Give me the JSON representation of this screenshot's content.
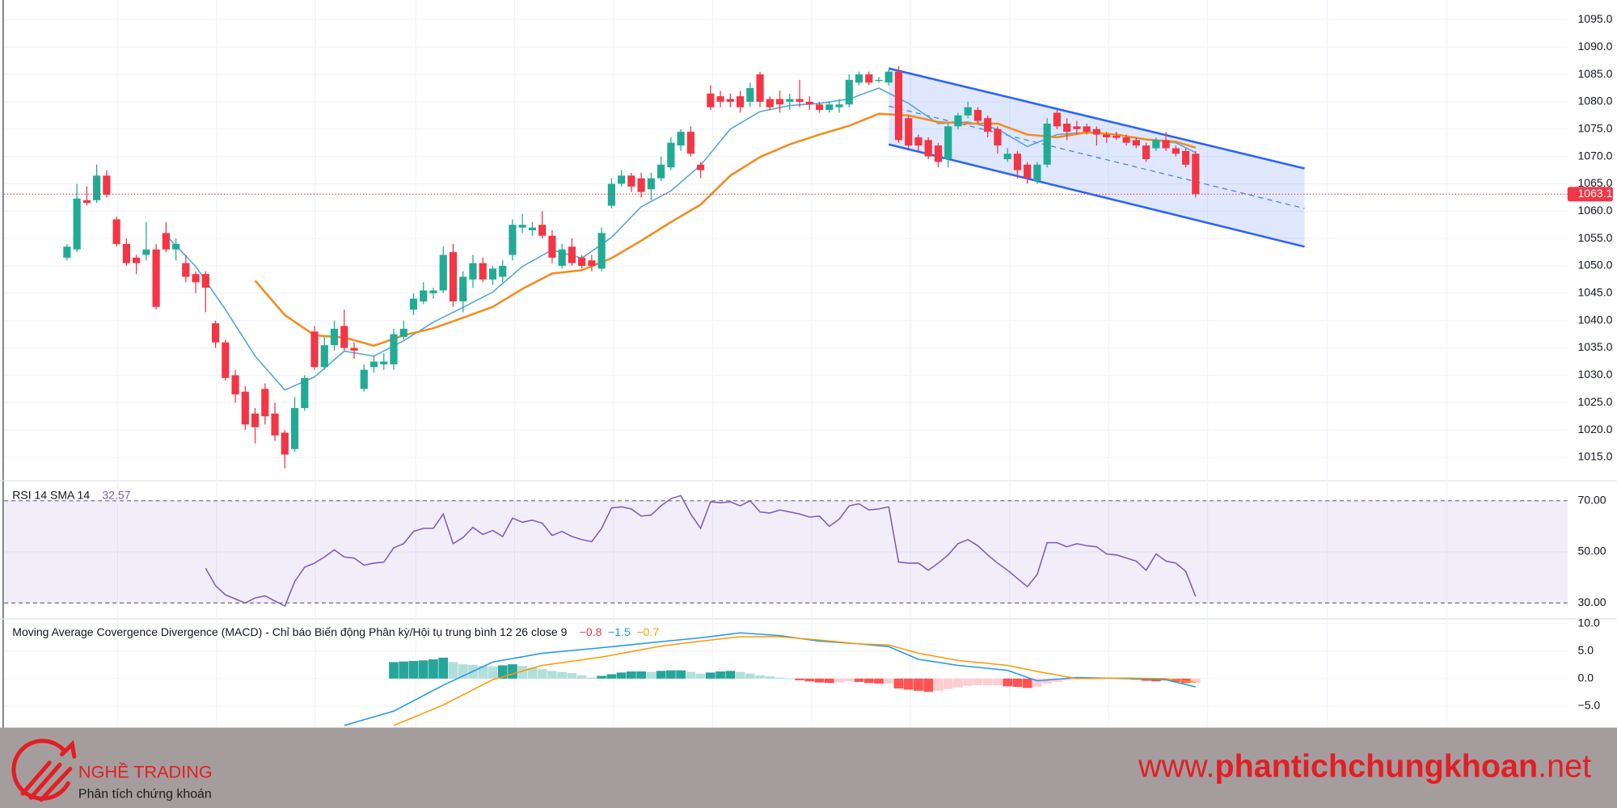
{
  "chart_data": [
    {
      "type": "candlestick",
      "up_color": "#22ab94",
      "down_color": "#f23645",
      "open": [
        1051.5,
        1053,
        1062,
        1062,
        1066.5,
        1058.5,
        1054,
        1051.5,
        1052,
        1053,
        1056,
        1053,
        1050.5,
        1048.5,
        1048.5,
        1039.5,
        1036,
        1030,
        1027,
        1023,
        1027.5,
        1023,
        1019.5,
        1016.5,
        1024,
        1038,
        1031.5,
        1035.5,
        1039,
        1035,
        1027.5,
        1031.5,
        1032,
        1032,
        1037,
        1042,
        1043.5,
        1045,
        1045.5,
        1052.5,
        1043.5,
        1047.5,
        1050.5,
        1047.5,
        1048,
        1052,
        1057,
        1056.5,
        1057.5,
        1055.5,
        1050,
        1053.5,
        1051.5,
        1051,
        1049.5,
        1061,
        1065,
        1066.5,
        1066,
        1064,
        1066,
        1068,
        1072,
        1074.5,
        1068.5,
        1081.5,
        1081,
        1080.5,
        1081,
        1080,
        1085,
        1080.5,
        1080.5,
        1080,
        1080.5,
        1080,
        1079.5,
        1078.5,
        1079,
        1079.5,
        1083.5,
        1085,
        1083.8,
        1083.5,
        1085.5,
        1077,
        1073.5,
        1073,
        1072,
        1069.5,
        1075.5,
        1077.5,
        1078.5,
        1077,
        1075,
        1069.5,
        1070.5,
        1068.5,
        1065.5,
        1068.5,
        1078,
        1076,
        1075.5,
        1075.5,
        1075,
        1074,
        1073.8,
        1073.5,
        1073,
        1072,
        1071.5,
        1073,
        1071.5,
        1071,
        1070.5
      ],
      "high": [
        1054,
        1065,
        1064.5,
        1068.5,
        1067.5,
        1059,
        1055,
        1052,
        1058,
        1054,
        1058,
        1055,
        1052,
        1049,
        1049,
        1040,
        1036.5,
        1031,
        1028,
        1024,
        1028.5,
        1025,
        1020,
        1026,
        1030,
        1039,
        1037,
        1040,
        1042,
        1036,
        1032,
        1033.5,
        1034,
        1038.5,
        1040,
        1045,
        1047,
        1046,
        1053.5,
        1054,
        1049,
        1052,
        1051.5,
        1050,
        1051,
        1058.5,
        1059.5,
        1058,
        1060,
        1056.5,
        1054,
        1055,
        1052,
        1052,
        1057,
        1066,
        1067.5,
        1067,
        1067,
        1067,
        1070,
        1073.5,
        1075,
        1075.5,
        1069,
        1083,
        1082,
        1081.5,
        1082,
        1083.5,
        1085.5,
        1081,
        1082,
        1081.5,
        1084,
        1081,
        1080,
        1080,
        1080.5,
        1085,
        1085.5,
        1085.5,
        1084.5,
        1086,
        1086.5,
        1077.5,
        1074,
        1073.5,
        1072.5,
        1076,
        1078,
        1080,
        1079,
        1077.5,
        1075.5,
        1071.5,
        1071,
        1069,
        1069,
        1077,
        1078.5,
        1077,
        1076.5,
        1076,
        1075.5,
        1074.5,
        1074.5,
        1074,
        1073.5,
        1072.5,
        1073.5,
        1074.5,
        1072,
        1071.5,
        1071
      ],
      "low": [
        1051,
        1052.5,
        1061,
        1061.5,
        1062.5,
        1053.5,
        1050,
        1048.5,
        1051,
        1042,
        1052.5,
        1051,
        1047,
        1045,
        1041.5,
        1035,
        1029,
        1025,
        1020,
        1017.5,
        1021,
        1018,
        1013,
        1016,
        1023.5,
        1031,
        1031,
        1034.5,
        1034.5,
        1033,
        1027,
        1030.5,
        1031,
        1031,
        1036.5,
        1041,
        1043,
        1044,
        1045,
        1042.5,
        1041.5,
        1046,
        1047,
        1046.5,
        1047,
        1051,
        1056,
        1055.5,
        1055,
        1050.5,
        1049.5,
        1050,
        1049.5,
        1049,
        1049,
        1060.5,
        1064.5,
        1063.5,
        1062.5,
        1062,
        1065.5,
        1067.5,
        1071,
        1070,
        1066,
        1078.5,
        1079,
        1079,
        1078,
        1079,
        1079,
        1078.5,
        1078,
        1078.5,
        1079,
        1078.5,
        1078,
        1078,
        1078,
        1079,
        1083,
        1083,
        1083.5,
        1083,
        1072.5,
        1071.5,
        1071,
        1069.5,
        1068,
        1068,
        1075,
        1077,
        1076,
        1073.5,
        1070.5,
        1069,
        1066,
        1065,
        1065,
        1068,
        1075,
        1073,
        1074,
        1074,
        1072,
        1072.5,
        1073,
        1072,
        1071.5,
        1069,
        1071,
        1071,
        1070,
        1068,
        1062.5
      ],
      "close": [
        1053.5,
        1062.3,
        1061.5,
        1066.5,
        1063,
        1054,
        1050.5,
        1050.5,
        1053,
        1042.5,
        1053,
        1054,
        1048,
        1047,
        1046,
        1036,
        1029.5,
        1026.5,
        1021,
        1020.5,
        1022.5,
        1019,
        1015.5,
        1024,
        1029.5,
        1031.5,
        1035.5,
        1038.5,
        1035,
        1034.5,
        1031,
        1032.5,
        1032.5,
        1037.5,
        1038.5,
        1044,
        1045.5,
        1045.5,
        1052,
        1043.5,
        1048,
        1050.5,
        1047.5,
        1049.5,
        1050,
        1057.5,
        1057.5,
        1057,
        1055.5,
        1051.5,
        1053,
        1050.5,
        1050,
        1050,
        1056,
        1065,
        1066.5,
        1064.5,
        1063.5,
        1066,
        1068.5,
        1072.5,
        1074.5,
        1070.5,
        1067.5,
        1079,
        1080,
        1080,
        1079,
        1082.5,
        1080,
        1079,
        1079.5,
        1080.5,
        1080,
        1079.5,
        1078.5,
        1079.5,
        1079.5,
        1084,
        1085,
        1083.5,
        1084,
        1085.5,
        1073,
        1072,
        1072,
        1070,
        1069,
        1075.5,
        1077.5,
        1079,
        1076.5,
        1074.5,
        1072,
        1070.5,
        1067.5,
        1066,
        1068.5,
        1076,
        1075.5,
        1074.5,
        1075,
        1074.5,
        1074,
        1073.5,
        1073.4,
        1072.5,
        1072,
        1069.5,
        1073,
        1071.5,
        1070.5,
        1068.5,
        1063.1
      ],
      "moving_averages": [
        {
          "color": "#4fa3e0",
          "x": [
            10,
            13,
            16,
            19,
            22,
            25,
            28,
            31,
            34,
            37,
            40,
            43,
            46,
            49,
            52,
            55,
            58,
            61,
            64,
            67,
            70,
            73,
            76,
            79,
            82,
            85,
            88,
            91,
            94,
            97,
            100,
            103,
            106,
            109,
            112,
            114
          ],
          "values": [
            1055.6,
            1049.9,
            1042,
            1033.5,
            1027.3,
            1029.7,
            1034.4,
            1033.5,
            1036.3,
            1039.7,
            1042.4,
            1045.2,
            1049.9,
            1052.9,
            1051.4,
            1055.2,
            1060.8,
            1063.7,
            1068.4,
            1075,
            1078.2,
            1079.3,
            1079.7,
            1080.5,
            1082.5,
            1079.7,
            1076,
            1076.3,
            1075,
            1071.8,
            1074,
            1074.4,
            1074,
            1073.1,
            1072.5,
            1070.7
          ]
        },
        {
          "color": "#f28c1e",
          "x": [
            19,
            22,
            25,
            28,
            31,
            34,
            37,
            40,
            43,
            46,
            49,
            52,
            55,
            58,
            61,
            64,
            67,
            70,
            73,
            76,
            79,
            82,
            85,
            88,
            91,
            94,
            97,
            100,
            103,
            106,
            109,
            112,
            114
          ],
          "values": [
            1047.3,
            1041,
            1037.3,
            1036.9,
            1035.4,
            1037.3,
            1038.6,
            1040.5,
            1042.5,
            1045.8,
            1048.6,
            1049.2,
            1051.4,
            1054.6,
            1058,
            1061.2,
            1066.5,
            1069.9,
            1072.2,
            1074,
            1075.6,
            1077.8,
            1077.5,
            1076.3,
            1076,
            1076,
            1074,
            1073.5,
            1074.4,
            1074,
            1073.1,
            1072.7,
            1071.6
          ]
        }
      ],
      "channel": {
        "color": "#2962ff",
        "x": [
          83,
          125
        ],
        "upper": [
          1086.1,
          1067.8
        ],
        "middle": [
          1079.2,
          1060.5
        ],
        "lower": [
          1072.2,
          1053.5
        ]
      },
      "last_price": 1063.1,
      "last_price_color": "#f23645",
      "ylim": [
        1010.8,
        1098.6
      ],
      "yticks": [
        {
          "value": 1015,
          "label": "1015.0"
        },
        {
          "value": 1020,
          "label": "1020.0"
        },
        {
          "value": 1025,
          "label": "1025.0"
        },
        {
          "value": 1030,
          "label": "1030.0"
        },
        {
          "value": 1035,
          "label": "1035.0"
        },
        {
          "value": 1040,
          "label": "1040.0"
        },
        {
          "value": 1045,
          "label": "1045.0"
        },
        {
          "value": 1050,
          "label": "1050.0"
        },
        {
          "value": 1055,
          "label": "1055.0"
        },
        {
          "value": 1060,
          "label": "1060.0"
        },
        {
          "value": 1065,
          "label": "1065.0"
        },
        {
          "value": 1070,
          "label": "1070.0"
        },
        {
          "value": 1075,
          "label": "1075.0"
        },
        {
          "value": 1080,
          "label": "1080.0"
        },
        {
          "value": 1085,
          "label": "1085.0"
        },
        {
          "value": 1090,
          "label": "1090.0"
        },
        {
          "value": 1095,
          "label": "1095.0"
        }
      ],
      "grid": true
    },
    {
      "type": "line",
      "title": "RSI 14 SMA 14",
      "color": "#7e57c2",
      "band_color": "#7e57c2",
      "values": [
        null,
        null,
        null,
        null,
        null,
        null,
        null,
        null,
        null,
        null,
        null,
        null,
        null,
        null,
        43.6,
        36.8,
        33.2,
        31.6,
        30,
        32,
        32.8,
        30.8,
        28.8,
        38.4,
        44,
        45.6,
        48,
        50.8,
        48,
        47.6,
        44.8,
        45.6,
        46,
        51.6,
        53.2,
        58,
        59.2,
        59.2,
        64.8,
        53.2,
        55.6,
        59.6,
        56.8,
        58.4,
        56,
        63.2,
        61.6,
        62.4,
        61.2,
        56.4,
        58,
        56,
        54.8,
        54,
        59.2,
        67.2,
        67.6,
        66.8,
        64,
        64.4,
        68,
        70.8,
        72,
        64.8,
        59.2,
        69.6,
        69.2,
        69.6,
        68,
        70,
        65.6,
        65.2,
        66.4,
        65.6,
        64.8,
        63.6,
        64,
        60,
        62.8,
        68,
        68.8,
        66.4,
        66.8,
        67.6,
        46,
        45.6,
        45.6,
        42.8,
        45.6,
        48.8,
        53.2,
        54.8,
        52.4,
        48.8,
        45.6,
        42.8,
        39.6,
        36.4,
        41.2,
        53.6,
        53.6,
        52,
        53.2,
        52.4,
        52,
        49.2,
        48.8,
        47.6,
        46.4,
        42.8,
        49.2,
        46.4,
        45.6,
        42.4,
        32.57
      ],
      "ylim": [
        24,
        77.6
      ],
      "yticks": [
        {
          "value": 30,
          "label": "30.00"
        },
        {
          "value": 50,
          "label": "50.00"
        },
        {
          "value": 70,
          "label": "70.00"
        }
      ]
    },
    {
      "type": "macd",
      "title": "Moving Average Covergence Divergence (MACD) - Chỉ báo Biến động Phân kỳ/Hội tụ trung bình 12 26 close 9",
      "readings": [
        {
          "value": -0.8,
          "label": "−0.8",
          "color": "#f23645"
        },
        {
          "value": -1.5,
          "label": "−1.5",
          "color": "#2196f3"
        },
        {
          "value": -0.7,
          "label": "−0.7",
          "color": "#ff9800"
        }
      ],
      "histogram": {
        "colors": {
          "up_rising": "#26a69a",
          "up_falling": "#b2dfdb",
          "down_falling": "#ff5252",
          "down_rising": "#ffcdd2"
        },
        "values": [
          null,
          null,
          null,
          null,
          null,
          null,
          null,
          null,
          null,
          null,
          null,
          null,
          null,
          null,
          null,
          null,
          null,
          null,
          null,
          null,
          null,
          null,
          null,
          null,
          null,
          null,
          null,
          null,
          null,
          null,
          null,
          null,
          null,
          3.0,
          3.1,
          3.2,
          3.3,
          3.5,
          3.8,
          3.0,
          2.6,
          2.5,
          2.3,
          2.2,
          2.4,
          2.6,
          2.3,
          2.0,
          1.7,
          1.4,
          1.2,
          1.0,
          0.6,
          0.2,
          0.5,
          0.8,
          1.1,
          1.3,
          1.3,
          1.2,
          1.4,
          1.5,
          1.5,
          1.2,
          0.9,
          1.1,
          1.3,
          1.4,
          1.2,
          0.9,
          0.6,
          0.4,
          0.2,
          0.0,
          -0.3,
          -0.5,
          -0.7,
          -0.8,
          -0.7,
          -0.5,
          -0.6,
          -0.8,
          -0.9,
          -0.9,
          -1.8,
          -2.0,
          -2.2,
          -2.4,
          -2.2,
          -1.9,
          -1.6,
          -1.3,
          -1.2,
          -1.2,
          -1.2,
          -1.4,
          -1.5,
          -1.7,
          -1.5,
          -0.9,
          -0.6,
          -0.3,
          -0.1,
          0.1,
          0.2,
          0.2,
          0.1,
          -0.1,
          -0.2,
          -0.4,
          -0.5,
          -0.4,
          -0.6,
          -0.8,
          -0.8
        ]
      },
      "series": [
        {
          "color": "#2196f3",
          "x": [
            28,
            33,
            38,
            43,
            48,
            54,
            60,
            64,
            68,
            72,
            76,
            80,
            83,
            86,
            90,
            95,
            98,
            102,
            107,
            111,
            114
          ],
          "values": [
            -8.5,
            -5.9,
            -1.2,
            3.0,
            4.6,
            5.6,
            6.7,
            7.4,
            8.3,
            7.8,
            6.8,
            6.3,
            5.8,
            3.5,
            2.4,
            1.5,
            -0.4,
            0.2,
            0,
            -0.2,
            -1.5
          ]
        },
        {
          "color": "#ff9800",
          "x": [
            33,
            38,
            43,
            48,
            54,
            60,
            64,
            68,
            72,
            76,
            80,
            83,
            86,
            90,
            95,
            98,
            102,
            107,
            111,
            114
          ],
          "values": [
            -8.5,
            -4.8,
            -0.2,
            2.4,
            3.9,
            5.9,
            6.8,
            7.6,
            7.6,
            7.0,
            6.3,
            6.1,
            4.6,
            3.3,
            2.4,
            1.3,
            0.0,
            0.1,
            0.0,
            -0.7
          ]
        }
      ],
      "ylim": [
        -8.89,
        10.74
      ],
      "yticks": [
        {
          "value": -5,
          "label": "−5.0"
        },
        {
          "value": 0,
          "label": "0.0"
        },
        {
          "value": 5,
          "label": "5.0"
        },
        {
          "value": 10,
          "label": "10.0"
        }
      ]
    }
  ],
  "footer": {
    "brand": "NGHỀ TRADING",
    "tagline": "Phân tích chứng khoán",
    "url_prefix": "www.",
    "url_main": "phantichchungkhoan",
    "url_suffix": ".net"
  }
}
